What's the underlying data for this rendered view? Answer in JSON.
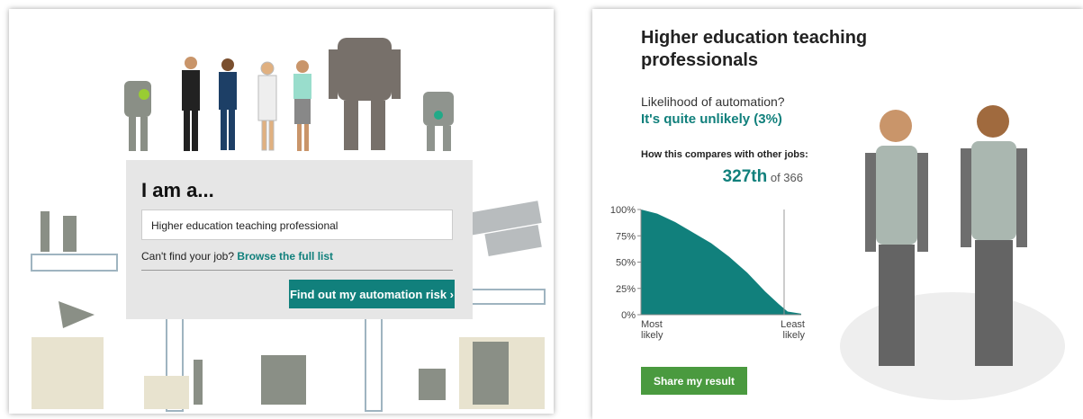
{
  "search": {
    "heading": "I am a...",
    "input": "Higher education teaching professional",
    "help_text": "Can't find your job?",
    "help_link": "Browse the full list",
    "button": "Find out my automation risk"
  },
  "result": {
    "title": "Higher education teaching professionals",
    "question": "Likelihood of automation?",
    "answer": "It's quite unlikely (3%)",
    "compare_label": "How this compares with other jobs:",
    "rank_of": "of 366",
    "share": "Share my result"
  },
  "chart": {
    "type": "area",
    "color": "#11807c",
    "x": [
      1,
      38,
      79,
      120,
      161,
      202,
      243,
      284,
      315,
      335,
      366
    ],
    "values": [
      100,
      96,
      88,
      78,
      68,
      55,
      40,
      22,
      10,
      3,
      1
    ],
    "xlim": [
      1,
      366
    ],
    "ylim": [
      0,
      100
    ],
    "yticks": [
      {
        "value": 0,
        "label": "0%"
      },
      {
        "value": 25,
        "label": "25%"
      },
      {
        "value": 50,
        "label": "50%"
      },
      {
        "value": 75,
        "label": "75%"
      },
      {
        "value": 100,
        "label": "100%"
      }
    ],
    "rank": {
      "value": 327,
      "label": "327th"
    },
    "x_start_label": "Most likely",
    "x_end_label": "Least likely"
  }
}
